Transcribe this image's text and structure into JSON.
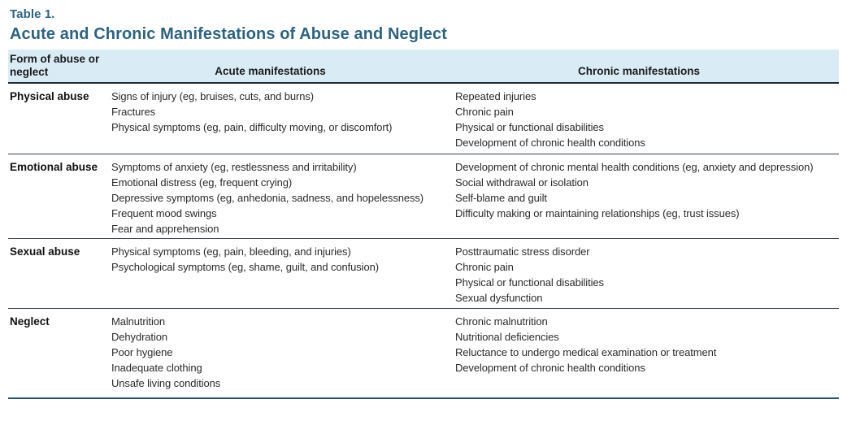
{
  "page": {
    "table_label": "Table 1.",
    "title": "Acute and Chronic Manifestations of Abuse and Neglect"
  },
  "table": {
    "headers": {
      "form": "Form of abuse or neglect",
      "acute": "Acute manifestations",
      "chronic": "Chronic manifestations"
    },
    "rows": [
      {
        "form": "Physical abuse",
        "acute": [
          "Signs of injury (eg, bruises, cuts, and burns)",
          "Fractures",
          "Physical symptoms (eg, pain, difficulty moving, or discomfort)"
        ],
        "chronic": [
          "Repeated injuries",
          "Chronic pain",
          "Physical or functional disabilities",
          "Development of chronic health conditions"
        ]
      },
      {
        "form": "Emotional abuse",
        "acute": [
          "Symptoms of anxiety (eg, restlessness and irritability)",
          "Emotional distress (eg, frequent crying)",
          "Depressive symptoms (eg, anhedonia, sadness, and hopelessness)",
          "Frequent mood swings",
          "Fear and apprehension"
        ],
        "chronic": [
          "Development of chronic mental health conditions (eg, anxiety and depression)",
          "Social withdrawal or isolation",
          "Self-blame and guilt",
          "Difficulty making or maintaining relationships (eg, trust issues)"
        ]
      },
      {
        "form": "Sexual abuse",
        "acute": [
          "Physical symptoms (eg, pain, bleeding, and injuries)",
          "Psychological symptoms (eg, shame, guilt, and confusion)"
        ],
        "chronic": [
          "Posttraumatic stress disorder",
          "Chronic pain",
          "Physical or functional disabilities",
          "Sexual dysfunction"
        ]
      },
      {
        "form": "Neglect",
        "acute": [
          "Malnutrition",
          "Dehydration",
          "Poor hygiene",
          "Inadequate clothing",
          "Unsafe living conditions"
        ],
        "chronic": [
          "Chronic malnutrition",
          "Nutritional deficiencies",
          "Reluctance to undergo medical examination or treatment",
          "Development of chronic health conditions"
        ]
      }
    ]
  },
  "colors": {
    "title_accent": "#2e6380",
    "header_background": "#d9ecf6",
    "header_rule": "#1e2c38",
    "row_rule": "#38444e",
    "bottom_rule": "#2e546e",
    "body_text": "#2b2b2b"
  }
}
